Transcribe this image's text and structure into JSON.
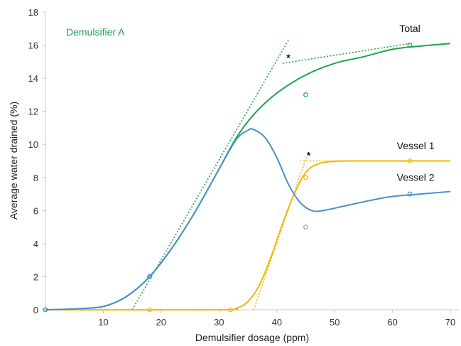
{
  "chart_data": {
    "type": "line",
    "xlabel": "Demulsifier dosage (ppm)",
    "ylabel": "Average water drained (%)",
    "xlim": [
      0,
      70
    ],
    "ylim": [
      0,
      18
    ],
    "xticks": [
      10,
      20,
      30,
      40,
      50,
      60,
      70
    ],
    "yticks": [
      0,
      2,
      4,
      6,
      8,
      10,
      12,
      14,
      16,
      18
    ],
    "grid": false,
    "annotations": {
      "panel_label": "Demulsifier A",
      "marker": "*"
    },
    "colors": {
      "total": "#1ea34f",
      "vessel1": "#f2b705",
      "vessel2": "#4a90c8",
      "panel_label": "#1ea34f"
    },
    "series": [
      {
        "name": "Total",
        "color": "#1ea34f",
        "curve": [
          [
            0,
            0
          ],
          [
            5,
            0.05
          ],
          [
            10,
            0.2
          ],
          [
            14,
            0.8
          ],
          [
            18,
            2.0
          ],
          [
            22,
            3.8
          ],
          [
            26,
            6.0
          ],
          [
            30,
            8.5
          ],
          [
            33,
            10.4
          ],
          [
            36,
            11.8
          ],
          [
            40,
            13.1
          ],
          [
            45,
            14.2
          ],
          [
            50,
            14.9
          ],
          [
            55,
            15.3
          ],
          [
            60,
            15.75
          ],
          [
            65,
            15.95
          ],
          [
            70,
            16.1
          ]
        ],
        "points": [
          [
            0,
            0
          ],
          [
            18,
            2
          ],
          [
            45,
            13
          ],
          [
            63,
            16
          ]
        ],
        "tangents": [
          {
            "from": [
              15,
              0
            ],
            "to": [
              42,
              16.3
            ]
          },
          {
            "from": [
              41,
              14.9
            ],
            "to": [
              63,
              16.1
            ]
          }
        ],
        "asterisk_at": [
          42,
          15.2
        ]
      },
      {
        "name": "Vessel 1",
        "color": "#f2b705",
        "curve": [
          [
            0,
            0
          ],
          [
            30,
            0
          ],
          [
            33,
            0.1
          ],
          [
            35,
            0.5
          ],
          [
            37,
            1.5
          ],
          [
            39,
            3.2
          ],
          [
            41,
            5.2
          ],
          [
            43,
            7.0
          ],
          [
            45,
            8.3
          ],
          [
            47,
            8.8
          ],
          [
            50,
            8.98
          ],
          [
            55,
            9.0
          ],
          [
            60,
            9.0
          ],
          [
            70,
            9.0
          ]
        ],
        "points": [
          [
            18,
            0
          ],
          [
            32,
            0
          ],
          [
            45,
            8
          ],
          [
            63,
            9
          ]
        ],
        "tangents": [
          {
            "from": [
              36,
              0
            ],
            "to": [
              45.2,
              9.3
            ]
          },
          {
            "from": [
              44,
              9.0
            ],
            "to": [
              63,
              9.0
            ]
          }
        ],
        "asterisk_at": [
          45.5,
          9.3
        ]
      },
      {
        "name": "Vessel 2",
        "color": "#4a90c8",
        "curve": [
          [
            0,
            0
          ],
          [
            5,
            0.05
          ],
          [
            10,
            0.2
          ],
          [
            14,
            0.8
          ],
          [
            18,
            2.0
          ],
          [
            22,
            3.8
          ],
          [
            26,
            6.0
          ],
          [
            30,
            8.5
          ],
          [
            33,
            10.3
          ],
          [
            35,
            10.85
          ],
          [
            36,
            10.9
          ],
          [
            38,
            10.4
          ],
          [
            40,
            9.2
          ],
          [
            42,
            7.6
          ],
          [
            44,
            6.5
          ],
          [
            46,
            6.0
          ],
          [
            48,
            6.0
          ],
          [
            52,
            6.3
          ],
          [
            56,
            6.6
          ],
          [
            60,
            6.85
          ],
          [
            65,
            7.0
          ],
          [
            70,
            7.15
          ]
        ],
        "points": [
          [
            0,
            0
          ],
          [
            18,
            2
          ],
          [
            45,
            5
          ],
          [
            63,
            7
          ]
        ]
      }
    ]
  }
}
